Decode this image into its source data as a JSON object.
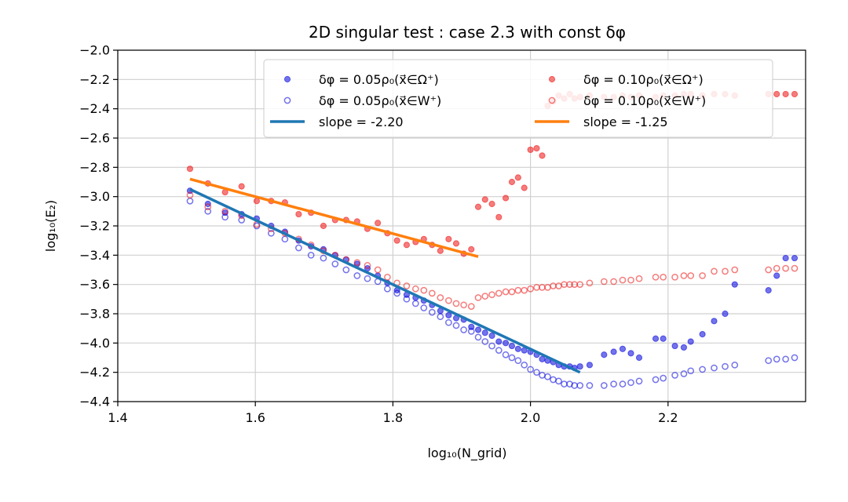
{
  "chart_data": {
    "type": "scatter",
    "title": "2D singular test : case 2.3 with const δφ",
    "xlabel": "log₁₀(N_grid)",
    "ylabel": "log₁₀(E₂)",
    "xlim": [
      1.4,
      2.4
    ],
    "ylim": [
      -4.4,
      -2.0
    ],
    "xticks": [
      1.4,
      1.6,
      1.8,
      2.0,
      2.2
    ],
    "xtick_labels": [
      "1.4",
      "1.6",
      "1.8",
      "2.0",
      "2.2"
    ],
    "yticks": [
      -4.4,
      -4.2,
      -4.0,
      -3.8,
      -3.6,
      -3.4,
      -3.2,
      -3.0,
      -2.8,
      -2.6,
      -2.4,
      -2.2,
      -2.0
    ],
    "ytick_labels": [
      "−4.4",
      "−4.2",
      "−4.0",
      "−3.8",
      "−3.6",
      "−3.4",
      "−3.2",
      "−3.0",
      "−2.8",
      "−2.6",
      "−2.4",
      "−2.2",
      "−2.0"
    ],
    "grid": true,
    "legend_position": "top-right",
    "colors": {
      "blue": "#0000dd",
      "red": "#ee1111",
      "blue_line": "#1f77b4",
      "orange_line": "#ff7f0e"
    },
    "series": [
      {
        "name": "δφ = 0.05ρ₀(x⃗∈Ω⁺)",
        "marker": "filled",
        "color": "#0000dd",
        "x": [
          1.505,
          1.531,
          1.556,
          1.58,
          1.602,
          1.623,
          1.643,
          1.663,
          1.681,
          1.699,
          1.716,
          1.732,
          1.748,
          1.763,
          1.778,
          1.792,
          1.806,
          1.82,
          1.833,
          1.845,
          1.857,
          1.869,
          1.881,
          1.892,
          1.903,
          1.914,
          1.924,
          1.934,
          1.944,
          1.954,
          1.964,
          1.973,
          1.982,
          1.991,
          2.0,
          2.009,
          2.017,
          2.025,
          2.033,
          2.041,
          2.049,
          2.057,
          2.064,
          2.072,
          2.086,
          2.107,
          2.121,
          2.134,
          2.146,
          2.158,
          2.182,
          2.193,
          2.21,
          2.223,
          2.233,
          2.25,
          2.267,
          2.283,
          2.297,
          2.346,
          2.358,
          2.371,
          2.384
        ],
        "y": [
          -2.96,
          -3.05,
          -3.11,
          -3.12,
          -3.15,
          -3.2,
          -3.24,
          -3.3,
          -3.34,
          -3.36,
          -3.4,
          -3.43,
          -3.46,
          -3.49,
          -3.54,
          -3.59,
          -3.64,
          -3.67,
          -3.69,
          -3.71,
          -3.74,
          -3.78,
          -3.81,
          -3.83,
          -3.84,
          -3.89,
          -3.91,
          -3.93,
          -3.95,
          -3.99,
          -4.0,
          -4.02,
          -4.04,
          -4.05,
          -4.06,
          -4.08,
          -4.11,
          -4.12,
          -4.13,
          -4.15,
          -4.16,
          -4.16,
          -4.17,
          -4.16,
          -4.15,
          -4.08,
          -4.06,
          -4.04,
          -4.07,
          -4.1,
          -3.97,
          -3.97,
          -4.02,
          -4.03,
          -3.99,
          -3.94,
          -3.85,
          -3.8,
          -3.6,
          -3.64,
          -3.54,
          -3.42,
          -3.42
        ]
      },
      {
        "name": "δφ = 0.05ρ₀(x⃗∈W⁺)",
        "marker": "hollow",
        "color": "#0000dd",
        "x": [
          1.505,
          1.531,
          1.556,
          1.58,
          1.602,
          1.623,
          1.643,
          1.663,
          1.681,
          1.699,
          1.716,
          1.732,
          1.748,
          1.763,
          1.778,
          1.792,
          1.806,
          1.82,
          1.833,
          1.845,
          1.857,
          1.869,
          1.881,
          1.892,
          1.903,
          1.914,
          1.924,
          1.934,
          1.944,
          1.954,
          1.964,
          1.973,
          1.982,
          1.991,
          2.0,
          2.009,
          2.017,
          2.025,
          2.033,
          2.041,
          2.049,
          2.057,
          2.064,
          2.072,
          2.086,
          2.107,
          2.121,
          2.134,
          2.146,
          2.158,
          2.182,
          2.193,
          2.21,
          2.223,
          2.233,
          2.25,
          2.267,
          2.283,
          2.297,
          2.346,
          2.358,
          2.371,
          2.384
        ],
        "y": [
          -3.03,
          -3.1,
          -3.14,
          -3.16,
          -3.2,
          -3.25,
          -3.29,
          -3.35,
          -3.4,
          -3.42,
          -3.46,
          -3.5,
          -3.54,
          -3.56,
          -3.58,
          -3.63,
          -3.66,
          -3.7,
          -3.73,
          -3.76,
          -3.79,
          -3.82,
          -3.86,
          -3.88,
          -3.91,
          -3.92,
          -3.96,
          -3.99,
          -4.02,
          -4.05,
          -4.08,
          -4.1,
          -4.12,
          -4.15,
          -4.18,
          -4.2,
          -4.22,
          -4.23,
          -4.25,
          -4.26,
          -4.28,
          -4.28,
          -4.29,
          -4.29,
          -4.29,
          -4.29,
          -4.28,
          -4.28,
          -4.27,
          -4.26,
          -4.25,
          -4.24,
          -4.22,
          -4.21,
          -4.19,
          -4.18,
          -4.17,
          -4.16,
          -4.15,
          -4.12,
          -4.11,
          -4.11,
          -4.1
        ]
      },
      {
        "name": "δφ = 0.10ρ₀(x⃗∈Ω⁺)",
        "marker": "filled",
        "color": "#ee1111",
        "x": [
          1.505,
          1.531,
          1.556,
          1.58,
          1.602,
          1.623,
          1.643,
          1.663,
          1.681,
          1.699,
          1.716,
          1.732,
          1.748,
          1.763,
          1.778,
          1.792,
          1.806,
          1.82,
          1.833,
          1.845,
          1.857,
          1.869,
          1.881,
          1.892,
          1.903,
          1.914,
          1.924,
          1.934,
          1.944,
          1.954,
          1.964,
          1.973,
          1.982,
          1.991,
          2.0,
          2.009,
          2.017,
          2.025,
          2.033,
          2.041,
          2.049,
          2.057,
          2.064,
          2.072,
          2.086,
          2.107,
          2.121,
          2.134,
          2.146,
          2.158,
          2.182,
          2.193,
          2.21,
          2.223,
          2.233,
          2.25,
          2.267,
          2.283,
          2.297,
          2.346,
          2.358,
          2.371,
          2.384
        ],
        "y": [
          -2.81,
          -2.91,
          -2.97,
          -2.93,
          -3.03,
          -3.03,
          -3.04,
          -3.12,
          -3.11,
          -3.2,
          -3.16,
          -3.16,
          -3.17,
          -3.22,
          -3.18,
          -3.25,
          -3.3,
          -3.33,
          -3.31,
          -3.29,
          -3.33,
          -3.37,
          -3.29,
          -3.32,
          -3.39,
          -3.36,
          -3.07,
          -3.02,
          -3.05,
          -3.14,
          -3.01,
          -2.9,
          -2.87,
          -2.94,
          -2.68,
          -2.67,
          -2.72,
          -2.38,
          -2.35,
          -2.31,
          -2.33,
          -2.3,
          -2.33,
          -2.32,
          -2.31,
          -2.32,
          -2.32,
          -2.31,
          -2.32,
          -2.31,
          -2.32,
          -2.31,
          -2.31,
          -2.3,
          -2.3,
          -2.31,
          -2.3,
          -2.3,
          -2.31,
          -2.3,
          -2.3,
          -2.3,
          -2.3
        ]
      },
      {
        "name": "δφ = 0.10ρ₀(x⃗∈W⁺)",
        "marker": "hollow",
        "color": "#ee1111",
        "x": [
          1.505,
          1.531,
          1.556,
          1.58,
          1.602,
          1.623,
          1.643,
          1.663,
          1.681,
          1.699,
          1.716,
          1.732,
          1.748,
          1.763,
          1.778,
          1.792,
          1.806,
          1.82,
          1.833,
          1.845,
          1.857,
          1.869,
          1.881,
          1.892,
          1.903,
          1.914,
          1.924,
          1.934,
          1.944,
          1.954,
          1.964,
          1.973,
          1.982,
          1.991,
          2.0,
          2.009,
          2.017,
          2.025,
          2.033,
          2.041,
          2.049,
          2.057,
          2.064,
          2.072,
          2.086,
          2.107,
          2.121,
          2.134,
          2.146,
          2.158,
          2.182,
          2.193,
          2.21,
          2.223,
          2.233,
          2.25,
          2.267,
          2.283,
          2.297,
          2.346,
          2.358,
          2.371,
          2.384
        ],
        "y": [
          -2.99,
          -3.07,
          -3.1,
          -3.13,
          -3.19,
          -3.22,
          -3.25,
          -3.29,
          -3.33,
          -3.37,
          -3.4,
          -3.43,
          -3.45,
          -3.47,
          -3.5,
          -3.55,
          -3.59,
          -3.61,
          -3.63,
          -3.64,
          -3.66,
          -3.69,
          -3.71,
          -3.73,
          -3.74,
          -3.75,
          -3.69,
          -3.68,
          -3.67,
          -3.66,
          -3.65,
          -3.65,
          -3.64,
          -3.64,
          -3.63,
          -3.62,
          -3.62,
          -3.62,
          -3.61,
          -3.61,
          -3.6,
          -3.6,
          -3.6,
          -3.6,
          -3.59,
          -3.58,
          -3.58,
          -3.57,
          -3.57,
          -3.56,
          -3.55,
          -3.55,
          -3.55,
          -3.54,
          -3.54,
          -3.54,
          -3.51,
          -3.51,
          -3.5,
          -3.5,
          -3.49,
          -3.49,
          -3.49
        ]
      },
      {
        "name": "slope = -2.20",
        "marker": "line",
        "color": "#1f77b4",
        "x": [
          1.505,
          2.072
        ],
        "y": [
          -2.95,
          -4.2
        ]
      },
      {
        "name": "slope = -1.25",
        "marker": "line",
        "color": "#ff7f0e",
        "x": [
          1.505,
          1.924
        ],
        "y": [
          -2.88,
          -3.41
        ]
      }
    ]
  }
}
